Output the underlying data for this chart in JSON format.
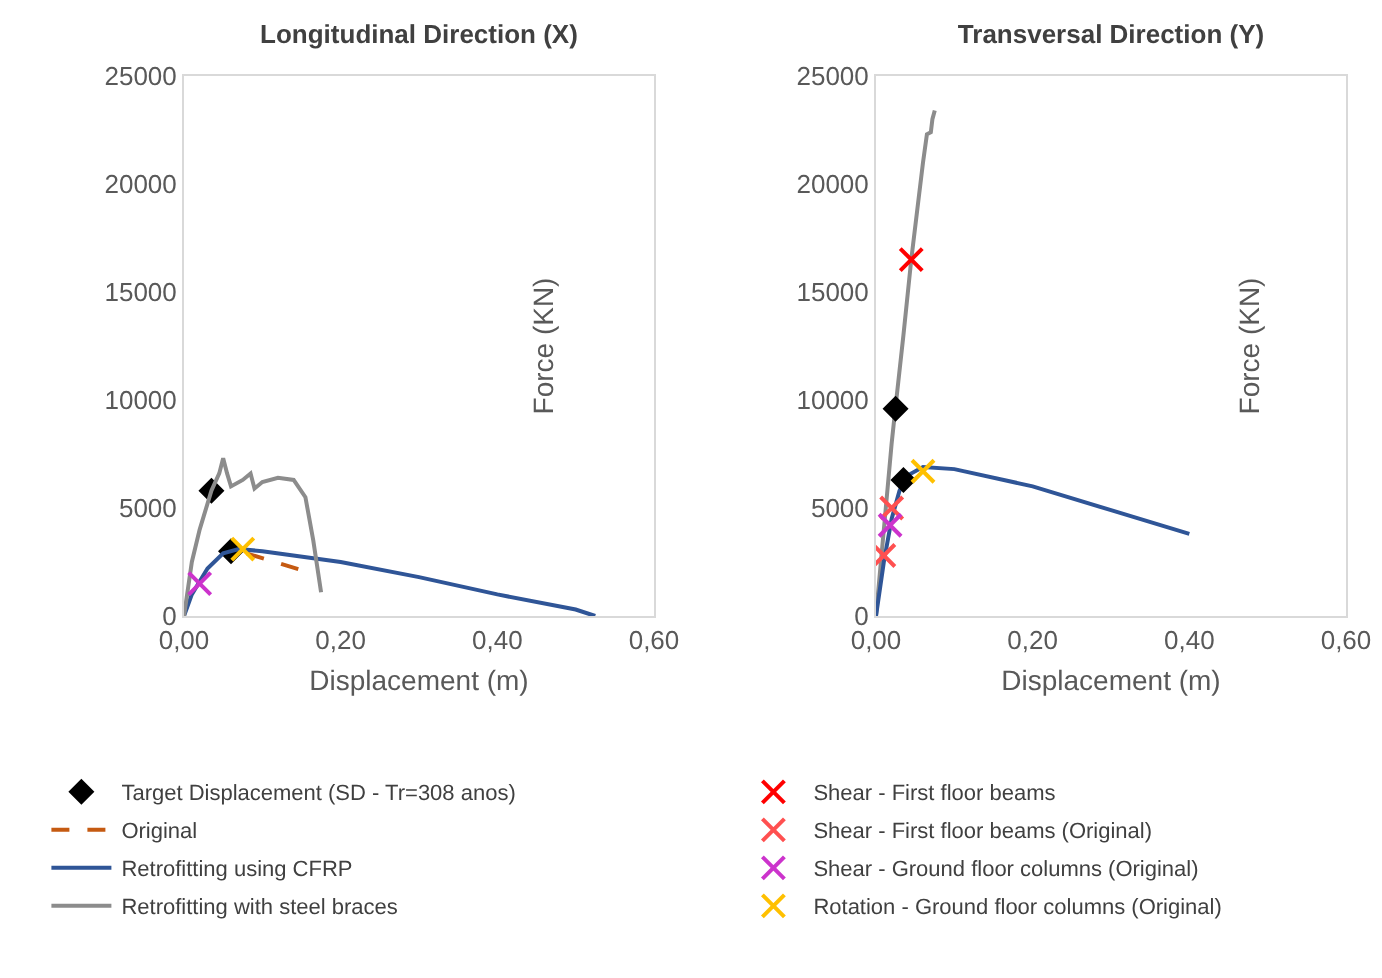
{
  "chart_data": [
    {
      "type": "line",
      "title": "Longitudinal Direction (X)",
      "xlabel": "Displacement (m)",
      "ylabel": "Force (KN)",
      "xlim": [
        0,
        0.6
      ],
      "ylim": [
        0,
        25000
      ],
      "xticks": [
        {
          "value": 0,
          "label": "0,00"
        },
        {
          "value": 0.2,
          "label": "0,20"
        },
        {
          "value": 0.4,
          "label": "0,40"
        },
        {
          "value": 0.6,
          "label": "0,60"
        }
      ],
      "yticks": [
        0,
        5000,
        10000,
        15000,
        20000,
        25000
      ],
      "legend": "bottom",
      "series": [
        {
          "name": "Target Displacement (SD - Tr=308 anos)",
          "type": "scatter",
          "marker": "diamond",
          "color": "#000000",
          "x": [
            0.035,
            0.06
          ],
          "values": [
            5800,
            3000
          ]
        },
        {
          "name": "Original",
          "type": "line",
          "line_style": "dashed",
          "color": "#c55a11",
          "x": [
            0.08,
            0.152
          ],
          "values": [
            2900,
            2100
          ]
        },
        {
          "name": "Retrofitting using CFRP",
          "type": "line",
          "color": "#2f5597",
          "x": [
            0,
            0.01,
            0.03,
            0.05,
            0.07,
            0.1,
            0.2,
            0.3,
            0.4,
            0.5,
            0.525
          ],
          "values": [
            0,
            1000,
            2200,
            2900,
            3100,
            3000,
            2500,
            1800,
            1000,
            300,
            0
          ]
        },
        {
          "name": "Retrofitting with steel braces",
          "type": "line",
          "color": "#8c8c8c",
          "x": [
            0,
            0.01,
            0.02,
            0.035,
            0.045,
            0.05,
            0.055,
            0.06,
            0.075,
            0.085,
            0.09,
            0.1,
            0.12,
            0.14,
            0.155,
            0.165,
            0.175
          ],
          "values": [
            0,
            2500,
            4000,
            5800,
            6600,
            7300,
            6600,
            6000,
            6300,
            6600,
            5900,
            6200,
            6400,
            6300,
            5500,
            3500,
            1100
          ]
        },
        {
          "type": "scatter",
          "marker": "cross",
          "color": "#cc33cc",
          "x": [
            0.02
          ],
          "values": [
            1500
          ]
        },
        {
          "type": "scatter",
          "marker": "cross",
          "color": "#ffc000",
          "x": [
            0.075
          ],
          "values": [
            3100
          ]
        }
      ]
    },
    {
      "type": "line",
      "title": "Transversal Direction (Y)",
      "xlabel": "Displacement (m)",
      "ylabel": "Force (KN)",
      "xlim": [
        0,
        0.6
      ],
      "ylim": [
        0,
        25000
      ],
      "xticks": [
        {
          "value": 0,
          "label": "0,00"
        },
        {
          "value": 0.2,
          "label": "0,20"
        },
        {
          "value": 0.4,
          "label": "0,40"
        },
        {
          "value": 0.6,
          "label": "0,60"
        }
      ],
      "yticks": [
        0,
        5000,
        10000,
        15000,
        20000,
        25000
      ],
      "legend": "bottom",
      "series": [
        {
          "type": "line",
          "color": "#8c8c8c",
          "x": [
            0,
            0.01,
            0.02,
            0.025,
            0.035,
            0.045,
            0.055,
            0.06,
            0.065,
            0.07,
            0.072,
            0.075
          ],
          "values": [
            0,
            4000,
            8000,
            9700,
            13000,
            16500,
            19500,
            21000,
            22300,
            22400,
            23000,
            23400
          ]
        },
        {
          "type": "line",
          "color": "#2f5597",
          "x": [
            0,
            0.01,
            0.02,
            0.03,
            0.04,
            0.06,
            0.1,
            0.2,
            0.3,
            0.4
          ],
          "values": [
            0,
            2500,
            4500,
            5800,
            6500,
            6900,
            6800,
            6000,
            4900,
            3800
          ]
        },
        {
          "type": "scatter",
          "marker": "diamond",
          "color": "#000000",
          "x": [
            0.025,
            0.035
          ],
          "values": [
            9600,
            6300
          ]
        },
        {
          "name": "Shear - First floor beams",
          "type": "scatter",
          "marker": "cross",
          "color": "#ff0000",
          "x": [
            0.045
          ],
          "values": [
            16500
          ]
        },
        {
          "name": "Shear - First floor beams (Original)",
          "type": "scatter",
          "marker": "cross",
          "color": "#ff5050",
          "x": [
            0.01,
            0.02
          ],
          "values": [
            2800,
            5000
          ]
        },
        {
          "name": "Shear - Ground floor columns (Original)",
          "type": "scatter",
          "marker": "cross",
          "color": "#cc33cc",
          "x": [
            0.018
          ],
          "values": [
            4200
          ]
        },
        {
          "name": "Rotation - Ground floor columns (Original)",
          "type": "scatter",
          "marker": "cross",
          "color": "#ffc000",
          "x": [
            0.06
          ],
          "values": [
            6700
          ]
        }
      ]
    }
  ]
}
